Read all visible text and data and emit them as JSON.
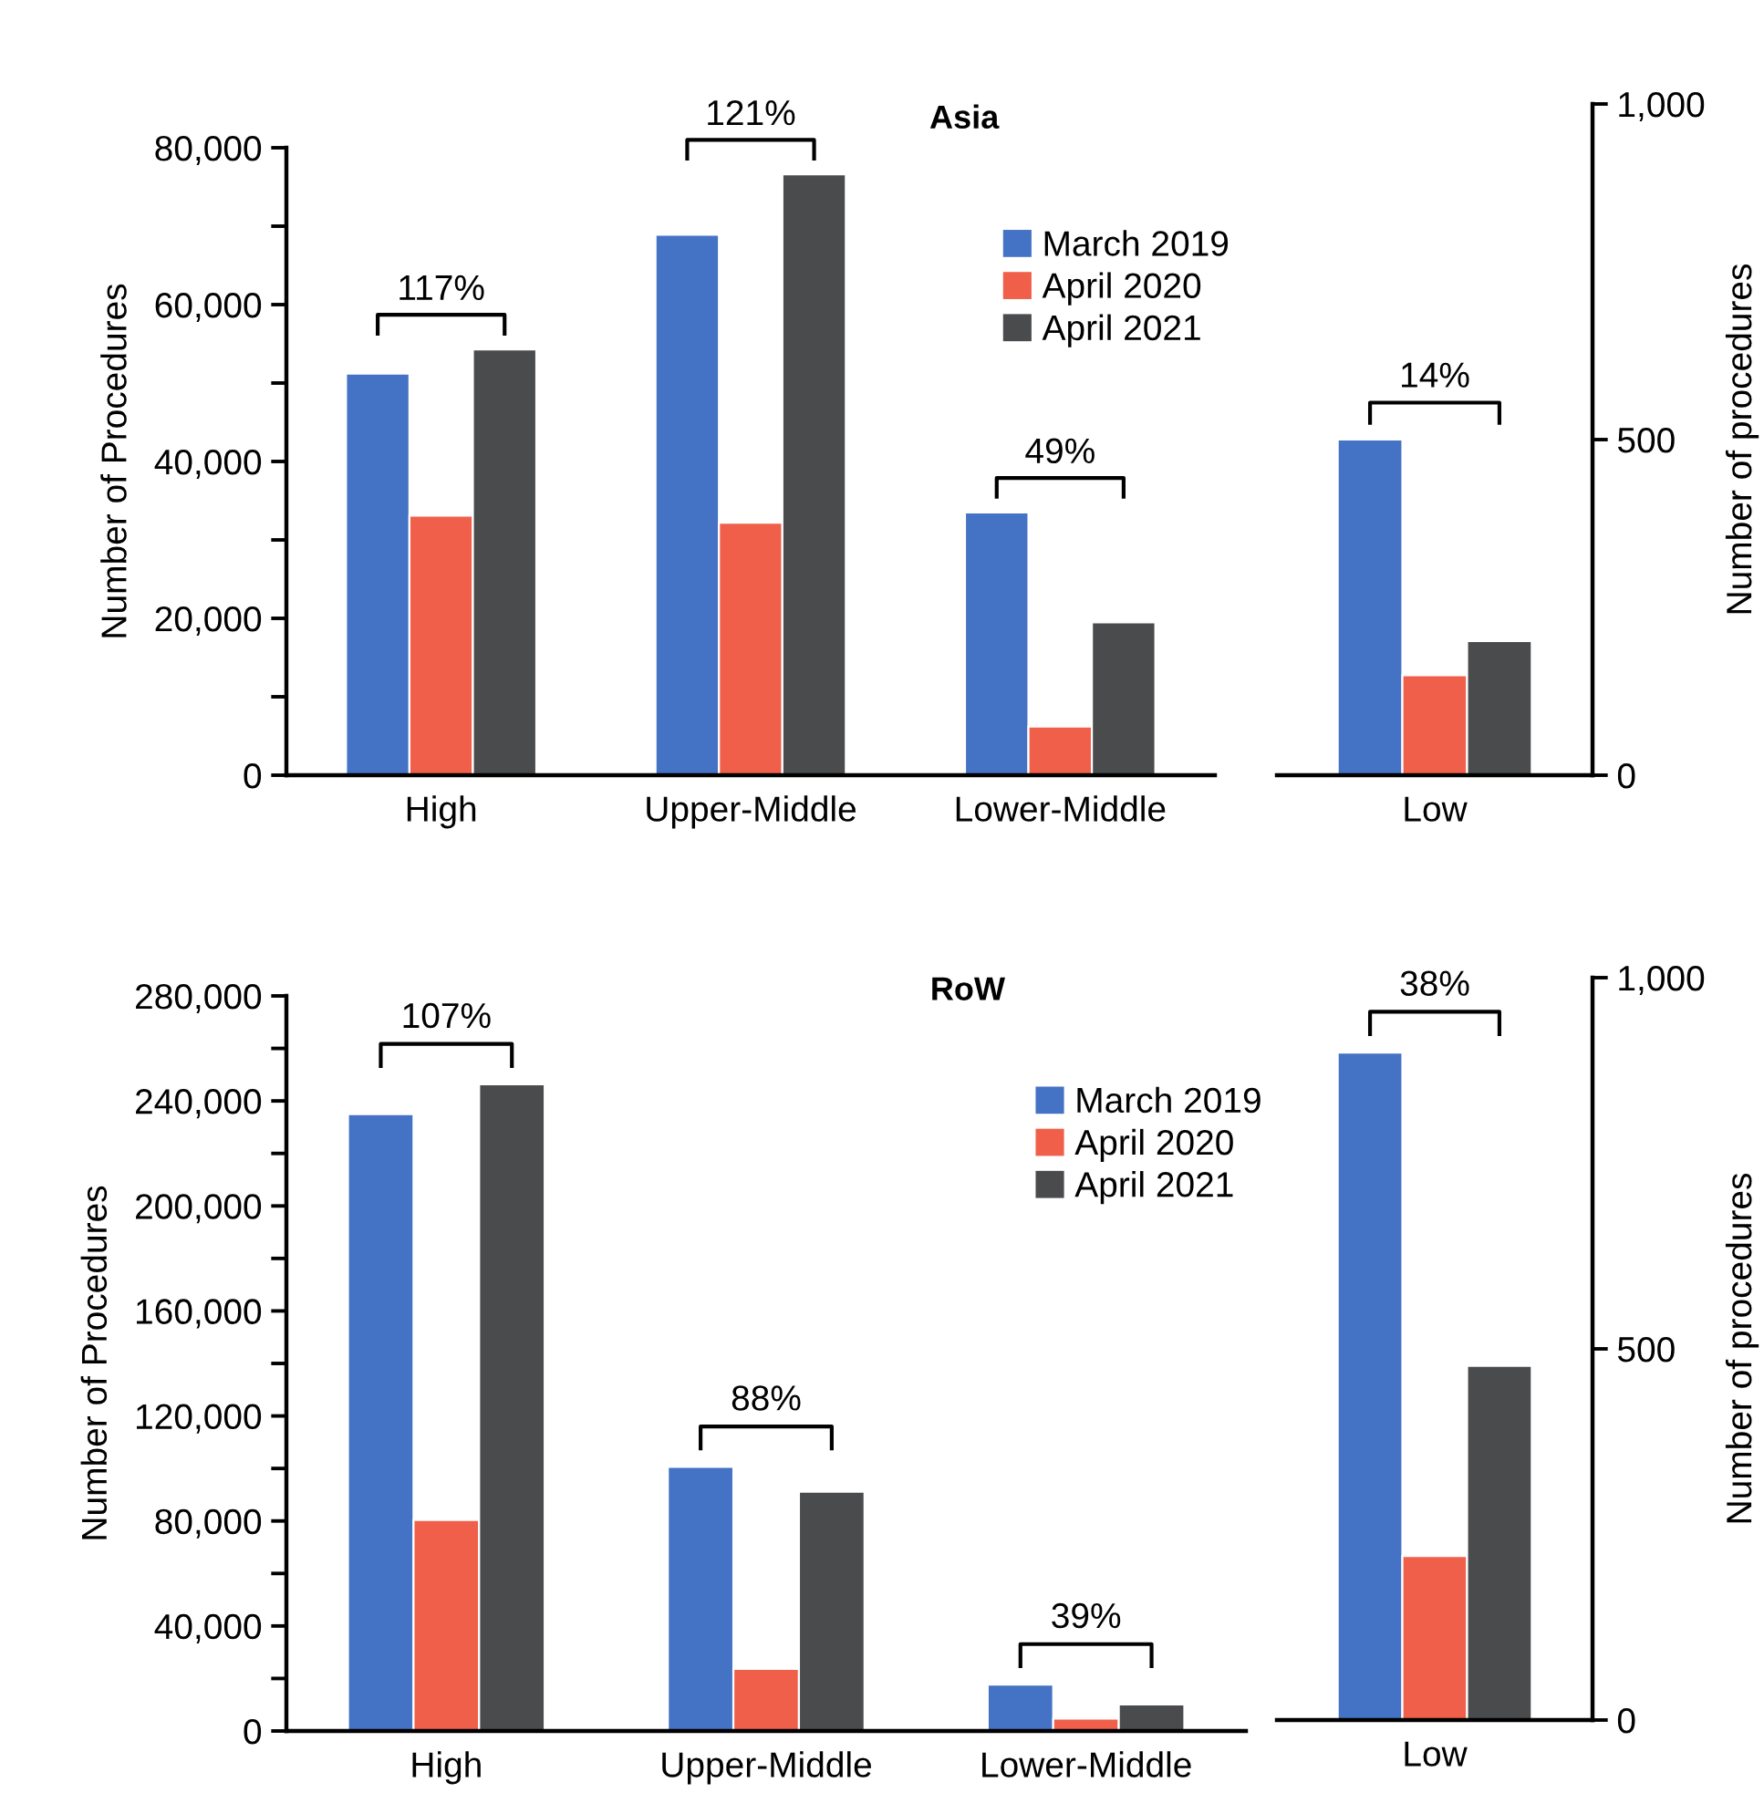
{
  "chart_data": [
    {
      "type": "bar",
      "title": "Asia",
      "ylabel": "Number of Procedures",
      "categories": [
        "High",
        "Upper-Middle",
        "Lower-Middle"
      ],
      "series": [
        {
          "name": "March 2019",
          "color": "#4472c4",
          "values": [
            51200,
            68900,
            33500
          ]
        },
        {
          "name": "April 2020",
          "color": "#f05f4a",
          "values": [
            33100,
            32200,
            6200
          ]
        },
        {
          "name": "April 2021",
          "color": "#4a4b4d",
          "values": [
            54300,
            76600,
            19500
          ]
        }
      ],
      "ylim": [
        0,
        80000
      ],
      "yticks": [
        {
          "value": 0,
          "label": "0"
        },
        {
          "value": 10000,
          "label": null
        },
        {
          "value": 20000,
          "label": "20,000"
        },
        {
          "value": 30000,
          "label": null
        },
        {
          "value": 40000,
          "label": "40,000"
        },
        {
          "value": 50000,
          "label": null
        },
        {
          "value": 60000,
          "label": "60,000"
        },
        {
          "value": 70000,
          "label": null
        },
        {
          "value": 80000,
          "label": "80,000"
        }
      ],
      "annotations": [
        "117%",
        "121%",
        "49%"
      ],
      "legend": "top right"
    },
    {
      "type": "bar",
      "y2label": "Number of procedures",
      "categories": [
        "Low"
      ],
      "series": [
        {
          "color": "#4472c4",
          "values": [
            500
          ],
          "axis": "y2"
        },
        {
          "color": "#f05f4a",
          "values": [
            149
          ],
          "axis": "y2"
        },
        {
          "color": "#4a4b4d",
          "values": [
            200
          ],
          "axis": "y2"
        }
      ],
      "y2lim": [
        0,
        1000
      ],
      "y2ticks": [
        0,
        500,
        {
          "value": 1000,
          "label": "1,000"
        }
      ],
      "annotations": [
        "14%"
      ]
    },
    {
      "type": "bar",
      "title": "RoW",
      "ylabel": "Number of Procedures",
      "categories": [
        "High",
        "Upper-Middle",
        "Lower-Middle"
      ],
      "series": [
        {
          "name": "March 2019",
          "color": "#4472c4",
          "values": [
            235000,
            100600,
            17700
          ]
        },
        {
          "name": "April 2020",
          "color": "#f05f4a",
          "values": [
            80400,
            23700,
            4700
          ]
        },
        {
          "name": "April 2021",
          "color": "#4a4b4d",
          "values": [
            246300,
            91100,
            10100
          ]
        }
      ],
      "ylim": [
        0,
        280000
      ],
      "yticks": [
        {
          "value": 0,
          "label": "0"
        },
        {
          "value": 20000,
          "label": null
        },
        {
          "value": 40000,
          "label": "40,000"
        },
        {
          "value": 60000,
          "label": null
        },
        {
          "value": 80000,
          "label": "80,000"
        },
        {
          "value": 100000,
          "label": null
        },
        {
          "value": 120000,
          "label": "120,000"
        },
        {
          "value": 140000,
          "label": null
        },
        {
          "value": 160000,
          "label": "160,000"
        },
        {
          "value": 180000,
          "label": null
        },
        {
          "value": 200000,
          "label": "200,000"
        },
        {
          "value": 220000,
          "label": null
        },
        {
          "value": 240000,
          "label": "240,000"
        },
        {
          "value": 260000,
          "label": null
        },
        {
          "value": 280000,
          "label": "280,000"
        }
      ],
      "annotations": [
        "107%",
        "88%",
        "39%"
      ],
      "legend": "top right"
    },
    {
      "type": "bar",
      "y2label": "Number of procedures",
      "categories": [
        "Low"
      ],
      "series": [
        {
          "color": "#4472c4",
          "values": [
            899
          ],
          "axis": "y2"
        },
        {
          "color": "#f05f4a",
          "values": [
            221
          ],
          "axis": "y2"
        },
        {
          "color": "#4a4b4d",
          "values": [
            477
          ],
          "axis": "y2"
        }
      ],
      "y2lim": [
        0,
        1000
      ],
      "y2ticks": [
        0,
        500,
        {
          "value": 1000,
          "label": "1,000"
        }
      ],
      "annotations": [
        "38%"
      ]
    }
  ]
}
